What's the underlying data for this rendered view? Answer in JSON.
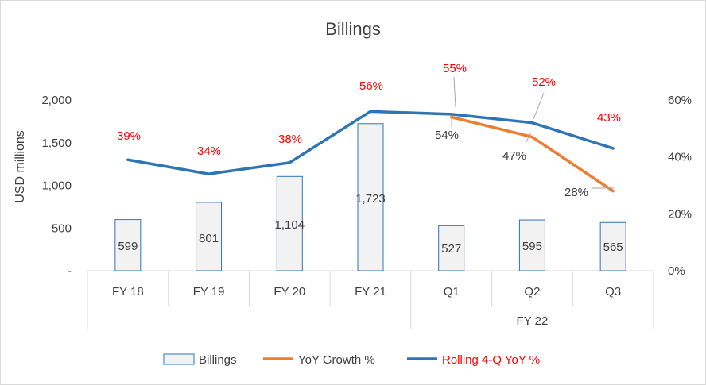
{
  "chart_data": {
    "type": "bar+line",
    "title": "Billings",
    "ylabel": "USD millions",
    "ylim": [
      0,
      2000
    ],
    "yticks": [
      "-",
      "500",
      "1,000",
      "1,500",
      "2,000"
    ],
    "y2lim": [
      0,
      60
    ],
    "y2ticks": [
      "0%",
      "20%",
      "40%",
      "60%"
    ],
    "categories": [
      "FY 18",
      "FY 19",
      "FY 20",
      "FY 21",
      "Q1",
      "Q2",
      "Q3"
    ],
    "group_label": "FY 22",
    "series": [
      {
        "name": "Billings",
        "type": "bar",
        "values": [
          599,
          801,
          1104,
          1723,
          527,
          595,
          565
        ],
        "labels": [
          "599",
          "801",
          "1,104",
          "1,723",
          "527",
          "595",
          "565"
        ]
      },
      {
        "name": "YoY Growth %",
        "type": "line",
        "axis": "secondary",
        "color": "#ed7d31",
        "values": [
          null,
          null,
          null,
          null,
          54,
          47,
          28
        ],
        "labels": [
          null,
          null,
          null,
          null,
          "54%",
          "47%",
          "28%"
        ]
      },
      {
        "name": "Rolling 4-Q YoY %",
        "type": "line",
        "axis": "secondary",
        "color": "#2e75b6",
        "values": [
          39,
          34,
          38,
          56,
          55,
          52,
          43
        ],
        "labels": [
          "39%",
          "34%",
          "38%",
          "56%",
          "55%",
          "52%",
          "43%"
        ]
      }
    ],
    "legend": {
      "position": "bottom",
      "items": [
        "Billings",
        "YoY Growth %",
        "Rolling 4-Q YoY %"
      ]
    }
  }
}
